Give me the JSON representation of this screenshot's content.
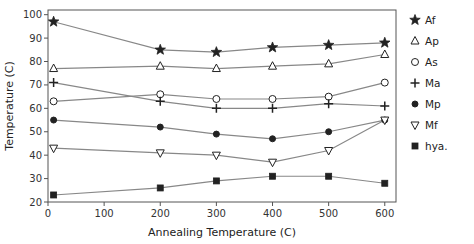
{
  "chart_data": {
    "type": "line",
    "xlabel": "Annealing Temperature (C)",
    "ylabel": "Temperature (C)",
    "x": [
      10,
      200,
      300,
      400,
      500,
      600
    ],
    "series": [
      {
        "name": "Af",
        "color": "#888888",
        "marker": "star",
        "values": [
          97,
          85,
          84,
          86,
          87,
          88
        ]
      },
      {
        "name": "Ap",
        "color": "#888888",
        "marker": "triangle-up-open",
        "values": [
          77,
          78,
          77,
          78,
          79,
          83
        ]
      },
      {
        "name": "As",
        "color": "#888888",
        "marker": "circle-open",
        "values": [
          63,
          66,
          64,
          64,
          65,
          71
        ]
      },
      {
        "name": "Ma",
        "color": "#888888",
        "marker": "plus",
        "values": [
          71,
          63,
          60,
          60,
          62,
          61
        ]
      },
      {
        "name": "Mp",
        "color": "#888888",
        "marker": "circle",
        "values": [
          55,
          52,
          49,
          47,
          50,
          55
        ]
      },
      {
        "name": "Mf",
        "color": "#888888",
        "marker": "triangle-down-open",
        "values": [
          43,
          41,
          40,
          37,
          42,
          55
        ]
      },
      {
        "name": "hya.",
        "color": "#888888",
        "marker": "square",
        "values": [
          23,
          26,
          29,
          31,
          31,
          28
        ]
      }
    ],
    "xlim": [
      0,
      620
    ],
    "ylim": [
      20,
      102
    ],
    "xticks": [
      0,
      100,
      200,
      300,
      400,
      500,
      600
    ],
    "yticks": [
      20,
      30,
      40,
      50,
      60,
      70,
      80,
      90,
      100
    ],
    "legend": "right"
  }
}
